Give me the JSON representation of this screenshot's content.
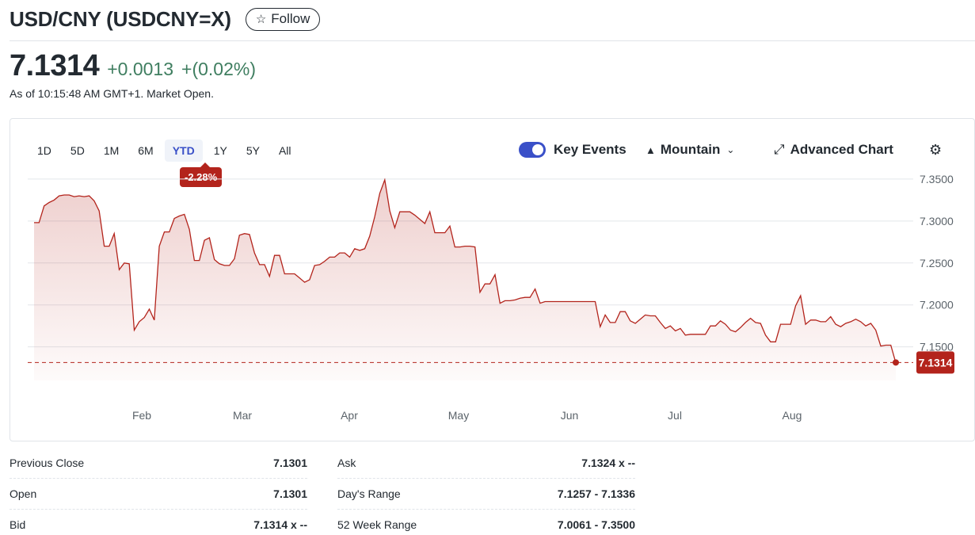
{
  "header": {
    "title": "USD/CNY (USDCNY=X)",
    "follow_label": "Follow",
    "follow_icon": "star-icon"
  },
  "quote": {
    "price": "7.1314",
    "change": "+0.0013",
    "change_percent": "+(0.02%)",
    "as_of": "As of 10:15:48 AM GMT+1. Market Open.",
    "positive_color": "#3f7e60"
  },
  "chart_controls": {
    "ranges": [
      "1D",
      "5D",
      "1M",
      "6M",
      "YTD",
      "1Y",
      "5Y",
      "All"
    ],
    "active_range": "YTD",
    "range_change": "-2.28%",
    "key_events_label": "Key Events",
    "key_events_on": true,
    "chart_type_label": "Mountain",
    "advanced_chart_label": "Advanced Chart",
    "accent_color": "#3a50c8"
  },
  "chart_data": {
    "type": "area",
    "x_tick_labels": [
      "Feb",
      "Mar",
      "Apr",
      "May",
      "Jun",
      "Jul",
      "Aug"
    ],
    "y_tick_labels": [
      "7.3500",
      "7.3000",
      "7.2500",
      "7.2000",
      "7.1500"
    ],
    "ylim": [
      7.11,
      7.365
    ],
    "y_ticks": [
      7.35,
      7.3,
      7.25,
      7.2,
      7.15
    ],
    "last_value": 7.1314,
    "last_value_label": "7.1314",
    "line_color": "#b3241c",
    "series": [
      {
        "values": [
          7.298,
          7.298,
          7.318,
          7.322,
          7.325,
          7.33,
          7.331,
          7.331,
          7.329,
          7.33,
          7.329,
          7.33,
          7.324,
          7.312,
          7.27,
          7.27,
          7.285,
          7.242,
          7.25,
          7.249,
          7.17,
          7.18,
          7.185,
          7.195,
          7.182,
          7.27,
          7.287,
          7.287,
          7.303,
          7.306,
          7.308,
          7.29,
          7.253,
          7.253,
          7.277,
          7.28,
          7.254,
          7.249,
          7.247,
          7.247,
          7.255,
          7.283,
          7.285,
          7.284,
          7.262,
          7.248,
          7.248,
          7.234,
          7.259,
          7.259,
          7.237,
          7.237,
          7.237,
          7.232,
          7.227,
          7.23,
          7.247,
          7.248,
          7.252,
          7.257,
          7.257,
          7.262,
          7.262,
          7.257,
          7.267,
          7.265,
          7.267,
          7.282,
          7.305,
          7.333,
          7.349,
          7.312,
          7.292,
          7.311,
          7.311,
          7.311,
          7.307,
          7.302,
          7.297,
          7.311,
          7.286,
          7.286,
          7.286,
          7.294,
          7.269,
          7.269,
          7.27,
          7.27,
          7.269,
          7.215,
          7.225,
          7.225,
          7.236,
          7.202,
          7.205,
          7.205,
          7.206,
          7.208,
          7.209,
          7.209,
          7.219,
          7.202,
          7.204,
          7.204,
          7.204,
          7.204,
          7.204,
          7.204,
          7.204,
          7.204,
          7.204,
          7.204,
          7.204,
          7.174,
          7.188,
          7.179,
          7.179,
          7.192,
          7.192,
          7.181,
          7.178,
          7.183,
          7.188,
          7.187,
          7.187,
          7.179,
          7.172,
          7.175,
          7.169,
          7.172,
          7.164,
          7.165,
          7.165,
          7.165,
          7.165,
          7.175,
          7.175,
          7.181,
          7.177,
          7.17,
          7.168,
          7.173,
          7.179,
          7.184,
          7.179,
          7.178,
          7.164,
          7.156,
          7.156,
          7.177,
          7.177,
          7.177,
          7.199,
          7.211,
          7.177,
          7.182,
          7.182,
          7.18,
          7.18,
          7.186,
          7.177,
          7.174,
          7.178,
          7.18,
          7.183,
          7.18,
          7.175,
          7.178,
          7.17,
          7.151,
          7.152,
          7.152,
          7.131
        ]
      }
    ]
  },
  "stats": {
    "left": [
      {
        "label": "Previous Close",
        "value": "7.1301"
      },
      {
        "label": "Open",
        "value": "7.1301"
      },
      {
        "label": "Bid",
        "value": "7.1314 x --"
      }
    ],
    "right": [
      {
        "label": "Ask",
        "value": "7.1324 x --"
      },
      {
        "label": "Day's Range",
        "value": "7.1257 - 7.1336"
      },
      {
        "label": "52 Week Range",
        "value": "7.0061 - 7.3500"
      }
    ]
  }
}
